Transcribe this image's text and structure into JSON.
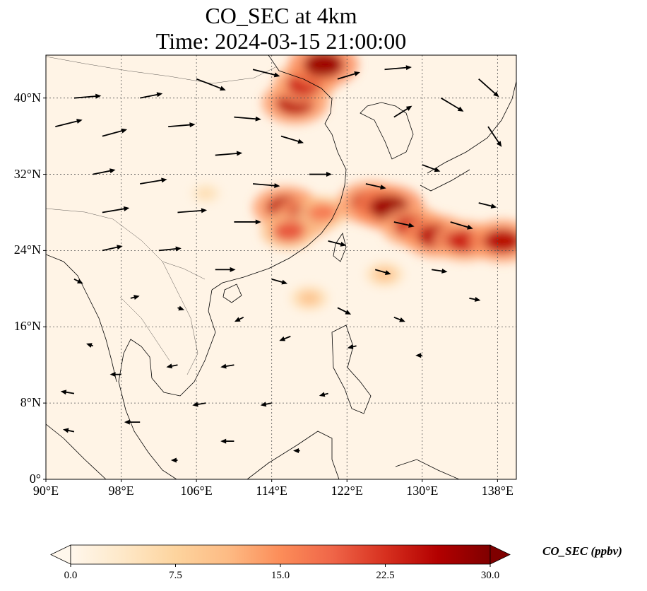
{
  "title_line1": "CO_SEC at 4km",
  "title_line2": "Time: 2024-03-15 21:00:00",
  "map": {
    "lat_range": [
      0,
      44.5
    ],
    "lon_range": [
      90,
      140
    ],
    "lat_ticks": [
      {
        "value": 0,
        "label": "0°"
      },
      {
        "value": 8,
        "label": "8°N"
      },
      {
        "value": 16,
        "label": "16°N"
      },
      {
        "value": 24,
        "label": "24°N"
      },
      {
        "value": 32,
        "label": "32°N"
      },
      {
        "value": 40,
        "label": "40°N"
      }
    ],
    "lon_ticks": [
      {
        "value": 90,
        "label": "90°E"
      },
      {
        "value": 98,
        "label": "98°E"
      },
      {
        "value": 106,
        "label": "106°E"
      },
      {
        "value": 114,
        "label": "114°E"
      },
      {
        "value": 122,
        "label": "122°E"
      },
      {
        "value": 130,
        "label": "130°E"
      },
      {
        "value": 138,
        "label": "138°E"
      }
    ],
    "gridlines": true,
    "plumes": [
      {
        "lon": 116.5,
        "lat": 39.5,
        "value": 26
      },
      {
        "lon": 117.5,
        "lat": 41.5,
        "value": 24
      },
      {
        "lon": 119.5,
        "lat": 43.5,
        "value": 28
      },
      {
        "lon": 115.5,
        "lat": 28.5,
        "value": 26
      },
      {
        "lon": 117.5,
        "lat": 27.5,
        "value": 24
      },
      {
        "lon": 115.8,
        "lat": 26.0,
        "value": 20
      },
      {
        "lon": 119.5,
        "lat": 28.0,
        "value": 17
      },
      {
        "lon": 124.5,
        "lat": 29.0,
        "value": 26
      },
      {
        "lon": 126.5,
        "lat": 28.5,
        "value": 28
      },
      {
        "lon": 129.0,
        "lat": 26.5,
        "value": 24
      },
      {
        "lon": 131.5,
        "lat": 25.5,
        "value": 26
      },
      {
        "lon": 134.5,
        "lat": 25.0,
        "value": 24
      },
      {
        "lon": 138.5,
        "lat": 25.0,
        "value": 26
      },
      {
        "lon": 126.0,
        "lat": 21.5,
        "value": 10
      },
      {
        "lon": 118.0,
        "lat": 19.0,
        "value": 10
      },
      {
        "lon": 107.0,
        "lat": 30.0,
        "value": 6
      }
    ],
    "wind_vectors": [
      {
        "lon": 91,
        "lat": 37,
        "u": 12,
        "v": 3
      },
      {
        "lon": 93,
        "lat": 40,
        "u": 12,
        "v": 1
      },
      {
        "lon": 96,
        "lat": 36,
        "u": 11,
        "v": 3
      },
      {
        "lon": 95,
        "lat": 32,
        "u": 10,
        "v": 2
      },
      {
        "lon": 100,
        "lat": 40,
        "u": 10,
        "v": 2
      },
      {
        "lon": 103,
        "lat": 37,
        "u": 12,
        "v": 1
      },
      {
        "lon": 100,
        "lat": 31,
        "u": 12,
        "v": 2
      },
      {
        "lon": 96,
        "lat": 28,
        "u": 12,
        "v": 2
      },
      {
        "lon": 104,
        "lat": 28,
        "u": 13,
        "v": 1
      },
      {
        "lon": 108,
        "lat": 34,
        "u": 12,
        "v": 1
      },
      {
        "lon": 106,
        "lat": 42,
        "u": 13,
        "v": -5
      },
      {
        "lon": 112,
        "lat": 43,
        "u": 12,
        "v": -3
      },
      {
        "lon": 110,
        "lat": 38,
        "u": 12,
        "v": -1
      },
      {
        "lon": 115,
        "lat": 36,
        "u": 10,
        "v": -3
      },
      {
        "lon": 112,
        "lat": 31,
        "u": 12,
        "v": -1
      },
      {
        "lon": 110,
        "lat": 27,
        "u": 12,
        "v": 0
      },
      {
        "lon": 118,
        "lat": 32,
        "u": 10,
        "v": 0
      },
      {
        "lon": 121,
        "lat": 42,
        "u": 10,
        "v": 3
      },
      {
        "lon": 126,
        "lat": 43,
        "u": 12,
        "v": 1
      },
      {
        "lon": 127,
        "lat": 38,
        "u": 8,
        "v": 5
      },
      {
        "lon": 132,
        "lat": 40,
        "u": 10,
        "v": -6
      },
      {
        "lon": 136,
        "lat": 42,
        "u": 9,
        "v": -8
      },
      {
        "lon": 137,
        "lat": 37,
        "u": 6,
        "v": -9
      },
      {
        "lon": 130,
        "lat": 33,
        "u": 8,
        "v": -3
      },
      {
        "lon": 124,
        "lat": 31,
        "u": 9,
        "v": -2
      },
      {
        "lon": 127,
        "lat": 27,
        "u": 9,
        "v": -2
      },
      {
        "lon": 133,
        "lat": 27,
        "u": 10,
        "v": -3
      },
      {
        "lon": 136,
        "lat": 29,
        "u": 8,
        "v": -2
      },
      {
        "lon": 120,
        "lat": 25,
        "u": 8,
        "v": -2
      },
      {
        "lon": 125,
        "lat": 22,
        "u": 7,
        "v": -2
      },
      {
        "lon": 131,
        "lat": 22,
        "u": 7,
        "v": -1
      },
      {
        "lon": 135,
        "lat": 19,
        "u": 5,
        "v": -1
      },
      {
        "lon": 121,
        "lat": 18,
        "u": 6,
        "v": -3
      },
      {
        "lon": 127,
        "lat": 17,
        "u": 5,
        "v": -2
      },
      {
        "lon": 114,
        "lat": 21,
        "u": 7,
        "v": -2
      },
      {
        "lon": 108,
        "lat": 22,
        "u": 9,
        "v": 0
      },
      {
        "lon": 102,
        "lat": 24,
        "u": 10,
        "v": 1
      },
      {
        "lon": 96,
        "lat": 24,
        "u": 9,
        "v": 2
      },
      {
        "lon": 93,
        "lat": 21,
        "u": 4,
        "v": -2
      },
      {
        "lon": 99,
        "lat": 19,
        "u": 4,
        "v": 1
      },
      {
        "lon": 104,
        "lat": 18,
        "u": 3,
        "v": -1
      },
      {
        "lon": 111,
        "lat": 17,
        "u": -4,
        "v": -2
      },
      {
        "lon": 116,
        "lat": 15,
        "u": -5,
        "v": -2
      },
      {
        "lon": 123,
        "lat": 14,
        "u": -4,
        "v": -1
      },
      {
        "lon": 130,
        "lat": 13,
        "u": -3,
        "v": 0
      },
      {
        "lon": 110,
        "lat": 12,
        "u": -6,
        "v": -1
      },
      {
        "lon": 104,
        "lat": 12,
        "u": -5,
        "v": -1
      },
      {
        "lon": 98,
        "lat": 11,
        "u": -5,
        "v": 0
      },
      {
        "lon": 93,
        "lat": 9,
        "u": -6,
        "v": 1
      },
      {
        "lon": 107,
        "lat": 8,
        "u": -6,
        "v": -1
      },
      {
        "lon": 114,
        "lat": 8,
        "u": -5,
        "v": -1
      },
      {
        "lon": 120,
        "lat": 9,
        "u": -4,
        "v": -1
      },
      {
        "lon": 100,
        "lat": 6,
        "u": -7,
        "v": 0
      },
      {
        "lon": 93,
        "lat": 5,
        "u": -5,
        "v": 1
      },
      {
        "lon": 110,
        "lat": 4,
        "u": -6,
        "v": 0
      },
      {
        "lon": 104,
        "lat": 2,
        "u": -3,
        "v": 0
      },
      {
        "lon": 117,
        "lat": 3,
        "u": -3,
        "v": 0
      },
      {
        "lon": 95,
        "lat": 14,
        "u": -3,
        "v": 1
      }
    ]
  },
  "colorbar": {
    "label": "CO_SEC (ppbv)",
    "min": 0.0,
    "max": 30.0,
    "extend": "both",
    "ticks": [
      "0.0",
      "7.5",
      "15.0",
      "22.5",
      "30.0"
    ],
    "colormap": [
      "#fff7ec",
      "#fee8c8",
      "#fdd49e",
      "#fdbb84",
      "#fc8d59",
      "#ef6548",
      "#d7301f",
      "#b30000",
      "#7f0000"
    ]
  }
}
